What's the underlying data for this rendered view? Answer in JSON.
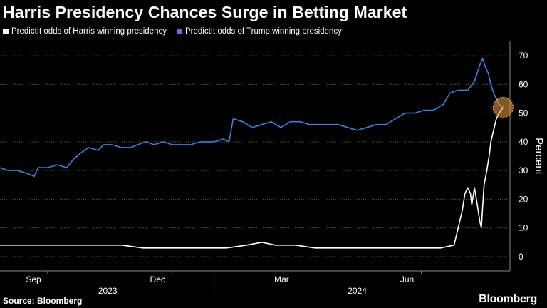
{
  "header": {
    "title": "Harris Presidency Chances Surge in Betting Market"
  },
  "legend": [
    {
      "label": "PredictIt odds of Harris winning presidency",
      "color": "#ffffff"
    },
    {
      "label": "PredictIt odds of Trump winning presidency",
      "color": "#3d7fe6"
    }
  ],
  "footer": {
    "source": "Source: Bloomberg",
    "brand": "Bloomberg"
  },
  "chart_data": {
    "type": "line",
    "title": "Harris Presidency Chances Surge in Betting Market",
    "xlabel": "",
    "ylabel": "Percent",
    "ylim": [
      -5,
      75
    ],
    "yticks": [
      0,
      10,
      20,
      30,
      40,
      50,
      60,
      70
    ],
    "x_start": "2023-07-28",
    "x_end": "2024-08-05",
    "month_ticks": [
      {
        "label": "Sep",
        "date": "2023-09-01"
      },
      {
        "label": "Dec",
        "date": "2023-12-01"
      },
      {
        "label": "Mar",
        "date": "2024-03-01"
      },
      {
        "label": "Jun",
        "date": "2024-06-01"
      }
    ],
    "year_labels": [
      {
        "label": "2023",
        "date": "2023-10-15"
      },
      {
        "label": "2024",
        "date": "2024-04-15"
      }
    ],
    "year_divider": "2024-01-01",
    "grid": true,
    "legend_position": "top-left",
    "highlight": {
      "date": "2024-07-31",
      "value": 52,
      "color": "#f0a040"
    },
    "series": [
      {
        "name": "PredictIt odds of Trump winning presidency",
        "color": "#3d7fe6",
        "points": [
          [
            "2023-07-28",
            31
          ],
          [
            "2023-08-03",
            30
          ],
          [
            "2023-08-10",
            30
          ],
          [
            "2023-08-17",
            29
          ],
          [
            "2023-08-22",
            28
          ],
          [
            "2023-08-25",
            31
          ],
          [
            "2023-09-01",
            31
          ],
          [
            "2023-09-08",
            32
          ],
          [
            "2023-09-15",
            31
          ],
          [
            "2023-09-20",
            34
          ],
          [
            "2023-09-25",
            36
          ],
          [
            "2023-10-01",
            38
          ],
          [
            "2023-10-08",
            37
          ],
          [
            "2023-10-12",
            39
          ],
          [
            "2023-10-18",
            39
          ],
          [
            "2023-10-25",
            38
          ],
          [
            "2023-11-01",
            38
          ],
          [
            "2023-11-06",
            39
          ],
          [
            "2023-11-12",
            40
          ],
          [
            "2023-11-18",
            39
          ],
          [
            "2023-11-25",
            40
          ],
          [
            "2023-12-01",
            39
          ],
          [
            "2023-12-08",
            39
          ],
          [
            "2023-12-15",
            39
          ],
          [
            "2023-12-22",
            40
          ],
          [
            "2024-01-01",
            40
          ],
          [
            "2024-01-08",
            41
          ],
          [
            "2024-01-12",
            40
          ],
          [
            "2024-01-15",
            48
          ],
          [
            "2024-01-22",
            47
          ],
          [
            "2024-01-29",
            45
          ],
          [
            "2024-02-05",
            46
          ],
          [
            "2024-02-12",
            47
          ],
          [
            "2024-02-19",
            45
          ],
          [
            "2024-02-26",
            47
          ],
          [
            "2024-03-04",
            47
          ],
          [
            "2024-03-11",
            46
          ],
          [
            "2024-03-18",
            46
          ],
          [
            "2024-03-25",
            46
          ],
          [
            "2024-04-01",
            46
          ],
          [
            "2024-04-08",
            45
          ],
          [
            "2024-04-15",
            44
          ],
          [
            "2024-04-22",
            45
          ],
          [
            "2024-04-29",
            46
          ],
          [
            "2024-05-06",
            46
          ],
          [
            "2024-05-13",
            48
          ],
          [
            "2024-05-20",
            50
          ],
          [
            "2024-05-27",
            50
          ],
          [
            "2024-06-03",
            51
          ],
          [
            "2024-06-10",
            51
          ],
          [
            "2024-06-17",
            53
          ],
          [
            "2024-06-22",
            57
          ],
          [
            "2024-06-28",
            58
          ],
          [
            "2024-07-05",
            58
          ],
          [
            "2024-07-10",
            61
          ],
          [
            "2024-07-14",
            67
          ],
          [
            "2024-07-16",
            69
          ],
          [
            "2024-07-18",
            66
          ],
          [
            "2024-07-20",
            64
          ],
          [
            "2024-07-22",
            60
          ],
          [
            "2024-07-24",
            57
          ],
          [
            "2024-07-26",
            55
          ],
          [
            "2024-07-28",
            53
          ],
          [
            "2024-07-31",
            52
          ]
        ]
      },
      {
        "name": "PredictIt odds of Harris winning presidency",
        "color": "#ffffff",
        "points": [
          [
            "2023-07-28",
            4
          ],
          [
            "2023-08-10",
            4
          ],
          [
            "2023-08-25",
            4
          ],
          [
            "2023-09-08",
            4
          ],
          [
            "2023-09-25",
            4
          ],
          [
            "2023-10-10",
            4
          ],
          [
            "2023-10-25",
            4
          ],
          [
            "2023-11-10",
            3
          ],
          [
            "2023-11-25",
            3
          ],
          [
            "2023-12-10",
            3
          ],
          [
            "2023-12-25",
            3
          ],
          [
            "2024-01-10",
            3
          ],
          [
            "2024-01-25",
            4
          ],
          [
            "2024-02-05",
            5
          ],
          [
            "2024-02-15",
            4
          ],
          [
            "2024-03-01",
            4
          ],
          [
            "2024-03-15",
            3
          ],
          [
            "2024-04-01",
            3
          ],
          [
            "2024-04-15",
            3
          ],
          [
            "2024-05-01",
            3
          ],
          [
            "2024-05-15",
            3
          ],
          [
            "2024-06-01",
            3
          ],
          [
            "2024-06-15",
            3
          ],
          [
            "2024-06-25",
            4
          ],
          [
            "2024-06-28",
            10
          ],
          [
            "2024-07-01",
            16
          ],
          [
            "2024-07-03",
            22
          ],
          [
            "2024-07-05",
            24
          ],
          [
            "2024-07-07",
            22
          ],
          [
            "2024-07-08",
            18
          ],
          [
            "2024-07-10",
            24
          ],
          [
            "2024-07-12",
            18
          ],
          [
            "2024-07-14",
            12
          ],
          [
            "2024-07-15",
            10
          ],
          [
            "2024-07-17",
            25
          ],
          [
            "2024-07-19",
            30
          ],
          [
            "2024-07-21",
            36
          ],
          [
            "2024-07-22",
            40
          ],
          [
            "2024-07-24",
            44
          ],
          [
            "2024-07-26",
            48
          ],
          [
            "2024-07-28",
            50
          ],
          [
            "2024-07-31",
            52
          ]
        ]
      }
    ]
  }
}
